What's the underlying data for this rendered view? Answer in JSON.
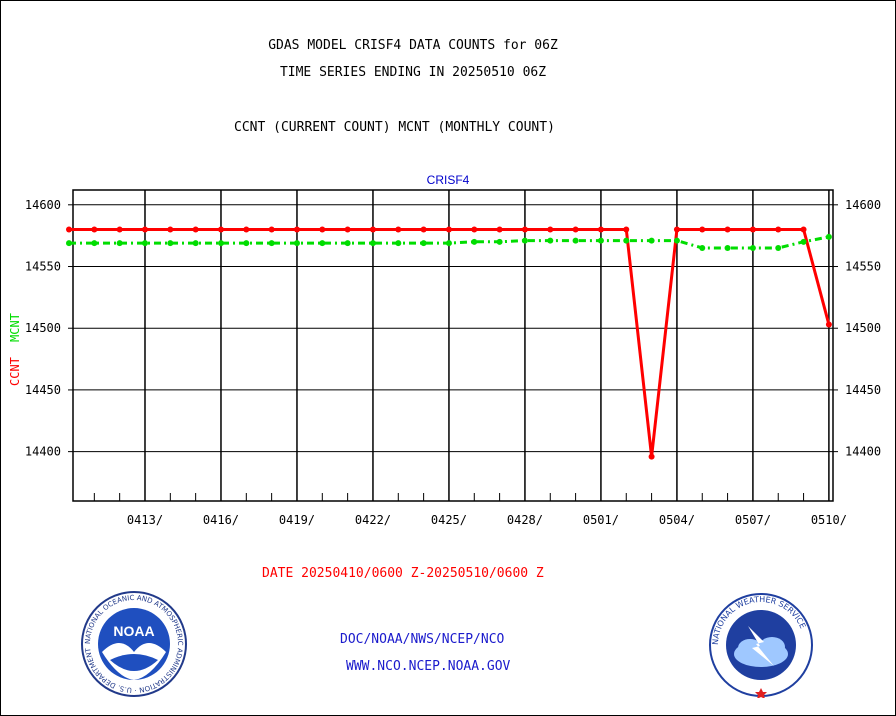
{
  "header": {
    "title_line1": "GDAS MODEL CRISF4 DATA COUNTS for 06Z",
    "title_line2": "TIME SERIES ENDING IN 20250510 06Z",
    "subtitle": "CCNT (CURRENT COUNT) MCNT (MONTHLY COUNT)"
  },
  "footer": {
    "date_range": "DATE 20250410/0600 Z-20250510/0600 Z",
    "org_path": "DOC/NOAA/NWS/NCEP/NCO",
    "website": "WWW.NCO.NCEP.NOAA.GOV",
    "noaa_logo_text": "NOAA",
    "noaa_ring_text": "NATIONAL OCEANIC AND ATMOSPHERIC ADMINISTRATION · U.S. DEPARTMENT OF COMMERCE",
    "nws_ring_text": "NATIONAL WEATHER SERVICE"
  },
  "chart_data": {
    "type": "line",
    "title": "CRISF4",
    "ylabel_ccnt": "CCNT",
    "ylabel_mcnt": "MCNT",
    "ylim": [
      14360,
      14612
    ],
    "y_ticks": [
      14400,
      14450,
      14500,
      14550,
      14600
    ],
    "x_range_days": [
      0,
      30
    ],
    "x_tick_days": [
      3,
      6,
      9,
      12,
      15,
      18,
      21,
      24,
      27,
      30
    ],
    "x_tick_labels": [
      "0413/",
      "0416/",
      "0419/",
      "0422/",
      "0425/",
      "0428/",
      "0501/",
      "0504/",
      "0507/",
      "0510/"
    ],
    "grid": true,
    "colors": {
      "ccnt": "#ff0000",
      "mcnt": "#00dd00",
      "panel_title": "#0000cc"
    },
    "series": [
      {
        "name": "CCNT",
        "x": [
          0,
          1,
          2,
          3,
          4,
          5,
          6,
          7,
          8,
          9,
          10,
          11,
          12,
          13,
          14,
          15,
          16,
          17,
          18,
          19,
          20,
          21,
          22,
          23,
          24,
          25,
          26,
          27,
          28,
          29,
          30
        ],
        "values": [
          14580,
          14580,
          14580,
          14580,
          14580,
          14580,
          14580,
          14580,
          14580,
          14580,
          14580,
          14580,
          14580,
          14580,
          14580,
          14580,
          14580,
          14580,
          14580,
          14580,
          14580,
          14580,
          14580,
          14396,
          14580,
          14580,
          14580,
          14580,
          14580,
          14580,
          14503
        ]
      },
      {
        "name": "MCNT",
        "x": [
          0,
          1,
          2,
          3,
          4,
          5,
          6,
          7,
          8,
          9,
          10,
          11,
          12,
          13,
          14,
          15,
          16,
          17,
          18,
          19,
          20,
          21,
          22,
          23,
          24,
          25,
          26,
          27,
          28,
          29,
          30
        ],
        "values": [
          14569,
          14569,
          14569,
          14569,
          14569,
          14569,
          14569,
          14569,
          14569,
          14569,
          14569,
          14569,
          14569,
          14569,
          14569,
          14569,
          14570,
          14570,
          14571,
          14571,
          14571,
          14571,
          14571,
          14571,
          14571,
          14565,
          14565,
          14565,
          14565,
          14570,
          14574
        ]
      }
    ]
  }
}
